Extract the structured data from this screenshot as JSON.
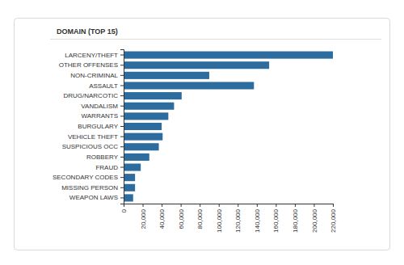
{
  "chart_data": {
    "type": "bar",
    "orientation": "horizontal",
    "title": "DOMAIN (TOP 15)",
    "categories": [
      "LARCENY/THEFT",
      "OTHER OFFENSES",
      "NON-CRIMINAL",
      "ASSAULT",
      "DRUG/NARCOTIC",
      "VANDALISM",
      "WARRANTS",
      "BURGULARY",
      "VEHICLE THEFT",
      "SUSPICIOUS OCC",
      "ROBBERY",
      "FRAUD",
      "SECONDARY CODES",
      "MISSING PERSON",
      "WEAPON LAWS"
    ],
    "values": [
      220000,
      153000,
      90000,
      137000,
      61000,
      53000,
      47000,
      40000,
      41000,
      37000,
      27000,
      18000,
      12000,
      12000,
      10000
    ],
    "color": "#2c6c9e",
    "xlim": [
      0,
      220000
    ],
    "xticks": [
      0,
      {
        "value": 20000,
        "label": "20,000"
      },
      {
        "value": 40000,
        "label": "40,000"
      },
      {
        "value": 60000,
        "label": "60,000"
      },
      {
        "value": 80000,
        "label": "80,000"
      },
      {
        "value": 100000,
        "label": "100,000"
      },
      {
        "value": 120000,
        "label": "120,000"
      },
      {
        "value": 140000,
        "label": "140,000"
      },
      {
        "value": 160000,
        "label": "160,000"
      },
      {
        "value": 180000,
        "label": "180,000"
      },
      {
        "value": 200000,
        "label": "200,000"
      },
      {
        "value": 220000,
        "label": "220,000"
      }
    ],
    "grid": false
  }
}
